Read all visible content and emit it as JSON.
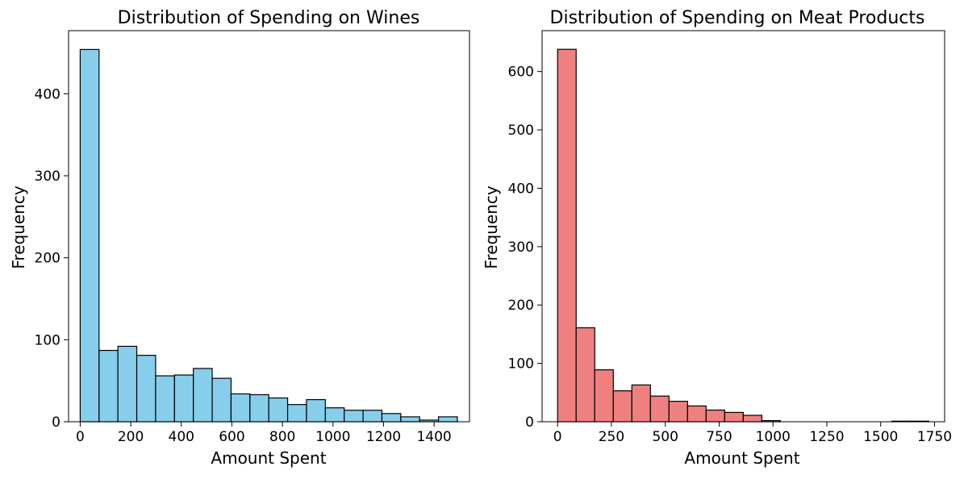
{
  "chart_data": [
    {
      "type": "bar",
      "title": "Distribution of Spending on Wines",
      "xlabel": "Amount Spent",
      "ylabel": "Frequency",
      "xlim": [
        -46,
        1540
      ],
      "ylim": [
        0,
        477
      ],
      "xticks": [
        0,
        200,
        400,
        600,
        800,
        1000,
        1200,
        1400
      ],
      "yticks": [
        0,
        100,
        200,
        300,
        400
      ],
      "bar_color": "#87CEEB",
      "edge_color": "#000000",
      "bin_width": 74.6,
      "bins_start": 0,
      "values": [
        454,
        87,
        92,
        81,
        56,
        57,
        65,
        53,
        34,
        33,
        29,
        21,
        27,
        17,
        14,
        14,
        10,
        6,
        2,
        6
      ],
      "grid": false
    },
    {
      "type": "bar",
      "title": "Distribution of Spending on Meat Products",
      "xlabel": "Amount Spent",
      "ylabel": "Frequency",
      "xlim": [
        -72,
        1797
      ],
      "ylim": [
        0,
        670
      ],
      "xticks": [
        0,
        250,
        500,
        750,
        1000,
        1250,
        1500,
        1750
      ],
      "yticks": [
        0,
        100,
        200,
        300,
        400,
        500,
        600
      ],
      "bar_color": "#F08080",
      "edge_color": "#000000",
      "bin_width": 86.2,
      "bins_start": 0,
      "values": [
        638,
        161,
        89,
        53,
        63,
        44,
        35,
        27,
        20,
        16,
        11,
        2,
        0,
        0,
        0,
        0,
        0,
        0,
        1,
        1
      ],
      "grid": false
    }
  ]
}
